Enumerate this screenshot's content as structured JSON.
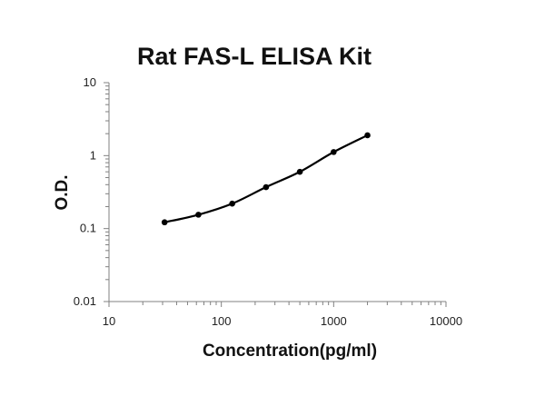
{
  "chart_data": {
    "type": "line",
    "title": "Rat FAS-L ELISA Kit",
    "xlabel": "Concentration(pg/ml)",
    "ylabel": "O.D.",
    "xscale": "log",
    "yscale": "log",
    "xlim": [
      10,
      10000
    ],
    "ylim": [
      0.01,
      10
    ],
    "x_ticks": [
      "10",
      "100",
      "1000",
      "10000"
    ],
    "y_ticks": [
      "0.01",
      "0.1",
      "1",
      "10"
    ],
    "grid": false,
    "legend": "none",
    "series": [
      {
        "x": [
          31.25,
          62.5,
          125,
          250,
          500,
          1000,
          2000
        ],
        "y": [
          0.122,
          0.155,
          0.22,
          0.37,
          0.6,
          1.12,
          1.9
        ]
      }
    ],
    "colors": {
      "line": "#000000",
      "axis": "#808080",
      "marker": "#000000"
    }
  }
}
